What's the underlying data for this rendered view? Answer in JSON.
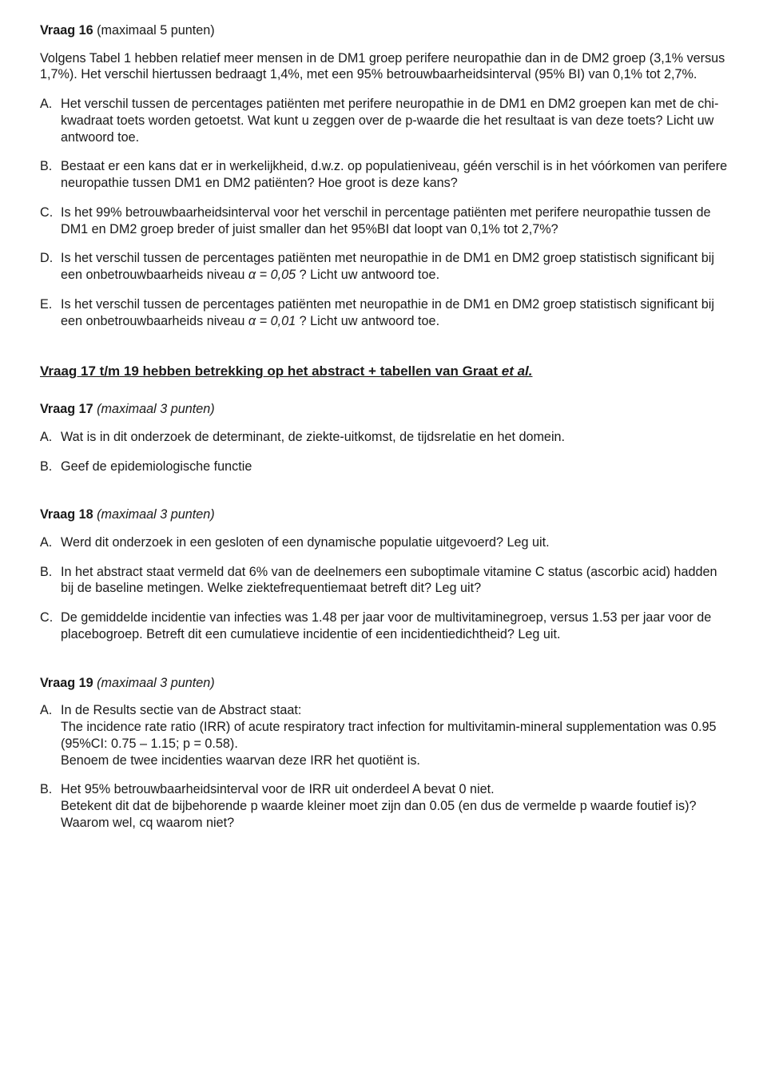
{
  "q16": {
    "title": "Vraag 16",
    "points": "(maximaal 5 punten)",
    "intro1": "Volgens Tabel 1 hebben relatief meer mensen in de DM1 groep perifere neuropathie dan in de DM2 groep (3,1% versus 1,7%). Het verschil hiertussen bedraagt 1,4%, met een 95% betrouwbaarheidsinterval (95% BI) van 0,1% tot  2,7%.",
    "items": {
      "A": "Het verschil tussen de percentages patiënten met perifere neuropathie in de DM1 en DM2 groepen kan met de chi-kwadraat toets worden getoetst. Wat kunt u zeggen over de p-waarde die het resultaat is van deze toets? Licht uw antwoord toe.",
      "B": "Bestaat er een kans dat er in werkelijkheid, d.w.z. op populatieniveau, géén verschil is in het vóórkomen van perifere neuropathie tussen DM1 en DM2 patiënten? Hoe groot is deze kans?",
      "C": "Is het  99% betrouwbaarheidsinterval voor het verschil in percentage patiënten met perifere neuropathie tussen de DM1 en DM2 groep breder of juist smaller dan het 95%BI dat loopt van 0,1% tot 2,7%?",
      "D_pre": "Is het verschil tussen de percentages patiënten met neuropathie in de DM1 en DM2 groep statistisch significant bij een  onbetrouwbaarheids niveau  ",
      "D_alpha": "α = 0,05",
      "D_post": " ?  Licht uw antwoord toe.",
      "E_pre": "Is het verschil tussen de percentages patiënten met neuropathie in de DM1 en DM2 groep statistisch significant bij een  onbetrouwbaarheids niveau  ",
      "E_alpha": "α = 0,01",
      "E_post": " ? Licht uw antwoord toe."
    }
  },
  "section_heading_pre": "Vraag 17 t/m 19 hebben betrekking op het abstract + tabellen van Graat ",
  "section_heading_ital": "et al.",
  "q17": {
    "title": "Vraag  17",
    "points": "(maximaal 3 punten)",
    "items": {
      "A": "Wat is in dit onderzoek de determinant, de ziekte-uitkomst, de tijdsrelatie en het domein.",
      "B": "Geef de epidemiologische functie"
    }
  },
  "q18": {
    "title": "Vraag 18",
    "points": "(maximaal 3 punten)",
    "items": {
      "A": "Werd dit onderzoek in een gesloten of een dynamische populatie uitgevoerd? Leg uit.",
      "B": "In het abstract staat vermeld dat 6% van de deelnemers een suboptimale vitamine C status (ascorbic acid) hadden bij de baseline metingen. Welke ziektefrequentiemaat betreft dit? Leg uit?",
      "C": "De gemiddelde incidentie van infecties was 1.48 per jaar voor de multivitaminegroep, versus 1.53 per jaar voor de placebogroep. Betreft dit een cumulatieve incidentie of een incidentiedichtheid? Leg uit."
    }
  },
  "q19": {
    "title": "Vraag  19",
    "points": "(maximaal 3 punten)",
    "items": {
      "A_l1": "In de Results sectie van de Abstract staat:",
      "A_l2": "The incidence rate ratio (IRR) of acute respiratory tract infection  for multivitamin-mineral supplementation was 0.95 (95%CI: 0.75 – 1.15; p = 0.58).",
      "A_l3": "Benoem de twee incidenties waarvan deze IRR het quotiënt is.",
      "B_l1": "Het 95% betrouwbaarheidsinterval voor de IRR uit onderdeel A bevat 0 niet.",
      "B_l2": "Betekent dit dat de bijbehorende p waarde kleiner moet zijn dan 0.05 (en dus de vermelde p waarde foutief is)? Waarom wel, cq waarom niet?"
    }
  }
}
